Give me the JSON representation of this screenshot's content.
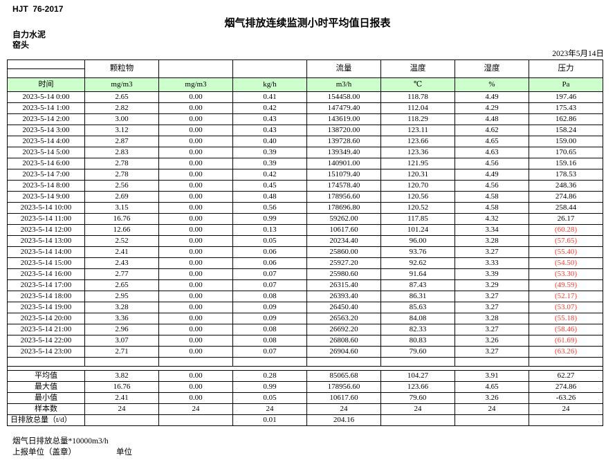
{
  "page": {
    "standard": "HJT  76-2017",
    "title": "烟气排放连续监测小时平均值日报表",
    "company": "自力水泥",
    "station": "窑头",
    "date": "2023年5月14日"
  },
  "table": {
    "group_labels": [
      "颗粒物",
      "",
      "",
      "流量",
      "温度",
      "湿度",
      "压力"
    ],
    "unit_headers": [
      "时间",
      "mg/m3",
      "mg/m3",
      "kg/h",
      "m3/h",
      "℃",
      "%",
      "Pa"
    ],
    "data_rows": [
      {
        "time": "2023-5-14 0:00",
        "values": [
          "2.65",
          "0.00",
          "0.41",
          "154458.00",
          "118.78",
          "4.49",
          "197.46"
        ]
      },
      {
        "time": "2023-5-14 1:00",
        "values": [
          "2.82",
          "0.00",
          "0.42",
          "147479.40",
          "112.04",
          "4.29",
          "175.43"
        ]
      },
      {
        "time": "2023-5-14 2:00",
        "values": [
          "3.00",
          "0.00",
          "0.43",
          "143619.00",
          "118.29",
          "4.48",
          "162.86"
        ]
      },
      {
        "time": "2023-5-14 3:00",
        "values": [
          "3.12",
          "0.00",
          "0.43",
          "138720.00",
          "123.11",
          "4.62",
          "158.24"
        ]
      },
      {
        "time": "2023-5-14 4:00",
        "values": [
          "2.87",
          "0.00",
          "0.40",
          "139728.60",
          "123.66",
          "4.65",
          "159.00"
        ]
      },
      {
        "time": "2023-5-14 5:00",
        "values": [
          "2.83",
          "0.00",
          "0.39",
          "139349.40",
          "123.36",
          "4.63",
          "170.65"
        ]
      },
      {
        "time": "2023-5-14 6:00",
        "values": [
          "2.78",
          "0.00",
          "0.39",
          "140901.00",
          "121.95",
          "4.56",
          "159.16"
        ]
      },
      {
        "time": "2023-5-14 7:00",
        "values": [
          "2.78",
          "0.00",
          "0.42",
          "151079.40",
          "120.31",
          "4.49",
          "178.53"
        ]
      },
      {
        "time": "2023-5-14 8:00",
        "values": [
          "2.56",
          "0.00",
          "0.45",
          "174578.40",
          "120.70",
          "4.56",
          "248.36"
        ]
      },
      {
        "time": "2023-5-14 9:00",
        "values": [
          "2.69",
          "0.00",
          "0.48",
          "178956.60",
          "120.56",
          "4.58",
          "274.86"
        ]
      },
      {
        "time": "2023-5-14 10:00",
        "values": [
          "3.15",
          "0.00",
          "0.56",
          "178696.80",
          "120.52",
          "4.58",
          "258.44"
        ]
      },
      {
        "time": "2023-5-14 11:00",
        "values": [
          "16.76",
          "0.00",
          "0.99",
          "59262.00",
          "117.85",
          "4.32",
          "26.17"
        ]
      },
      {
        "time": "2023-5-14 12:00",
        "values": [
          "12.66",
          "0.00",
          "0.13",
          "10617.60",
          "101.24",
          "3.34",
          "(60.28)"
        ]
      },
      {
        "time": "2023-5-14 13:00",
        "values": [
          "2.52",
          "0.00",
          "0.05",
          "20234.40",
          "96.00",
          "3.28",
          "(57.65)"
        ]
      },
      {
        "time": "2023-5-14 14:00",
        "values": [
          "2.41",
          "0.00",
          "0.06",
          "25860.00",
          "93.76",
          "3.27",
          "(55.40)"
        ]
      },
      {
        "time": "2023-5-14 15:00",
        "values": [
          "2.43",
          "0.00",
          "0.06",
          "25927.20",
          "92.62",
          "3.33",
          "(54.50)"
        ]
      },
      {
        "time": "2023-5-14 16:00",
        "values": [
          "2.77",
          "0.00",
          "0.07",
          "25980.60",
          "91.64",
          "3.39",
          "(53.30)"
        ]
      },
      {
        "time": "2023-5-14 17:00",
        "values": [
          "2.65",
          "0.00",
          "0.07",
          "26315.40",
          "87.43",
          "3.29",
          "(49.59)"
        ]
      },
      {
        "time": "2023-5-14 18:00",
        "values": [
          "2.95",
          "0.00",
          "0.08",
          "26393.40",
          "86.31",
          "3.27",
          "(52.17)"
        ]
      },
      {
        "time": "2023-5-14 19:00",
        "values": [
          "3.28",
          "0.00",
          "0.09",
          "26450.40",
          "85.63",
          "3.27",
          "(53.07)"
        ]
      },
      {
        "time": "2023-5-14 20:00",
        "values": [
          "3.36",
          "0.00",
          "0.09",
          "26563.20",
          "84.08",
          "3.28",
          "(55.18)"
        ]
      },
      {
        "time": "2023-5-14 21:00",
        "values": [
          "2.96",
          "0.00",
          "0.08",
          "26692.20",
          "82.33",
          "3.27",
          "(58.46)"
        ]
      },
      {
        "time": "2023-5-14 22:00",
        "values": [
          "3.07",
          "0.00",
          "0.08",
          "26808.60",
          "80.83",
          "3.26",
          "(61.69)"
        ]
      },
      {
        "time": "2023-5-14 23:00",
        "values": [
          "2.71",
          "0.00",
          "0.07",
          "26904.60",
          "79.60",
          "3.27",
          "(63.26)"
        ]
      }
    ],
    "summary_rows": [
      {
        "label": "平均值",
        "values": [
          "3.82",
          "0.00",
          "0.28",
          "85065.68",
          "104.27",
          "3.91",
          "62.27"
        ]
      },
      {
        "label": "最大值",
        "values": [
          "16.76",
          "0.00",
          "0.99",
          "178956.60",
          "123.66",
          "4.65",
          "274.86"
        ]
      },
      {
        "label": "最小值",
        "values": [
          "2.41",
          "0.00",
          "0.05",
          "10617.60",
          "79.60",
          "3.26",
          "-63.26"
        ]
      },
      {
        "label": "样本数",
        "values": [
          "24",
          "24",
          "24",
          "24",
          "24",
          "24",
          "24"
        ]
      },
      {
        "label": "日排放总量（t/d）",
        "values": [
          "",
          "",
          "0.01",
          "204.16",
          "",
          "",
          ""
        ]
      }
    ]
  },
  "footer": {
    "note": "烟气日排放总量*10000m3/h",
    "report_unit_label": "上报单位（盖章）",
    "unit_label": "单位"
  },
  "colors": {
    "header_fill": "#ccffcc",
    "negative_value": "#ff3b30"
  }
}
